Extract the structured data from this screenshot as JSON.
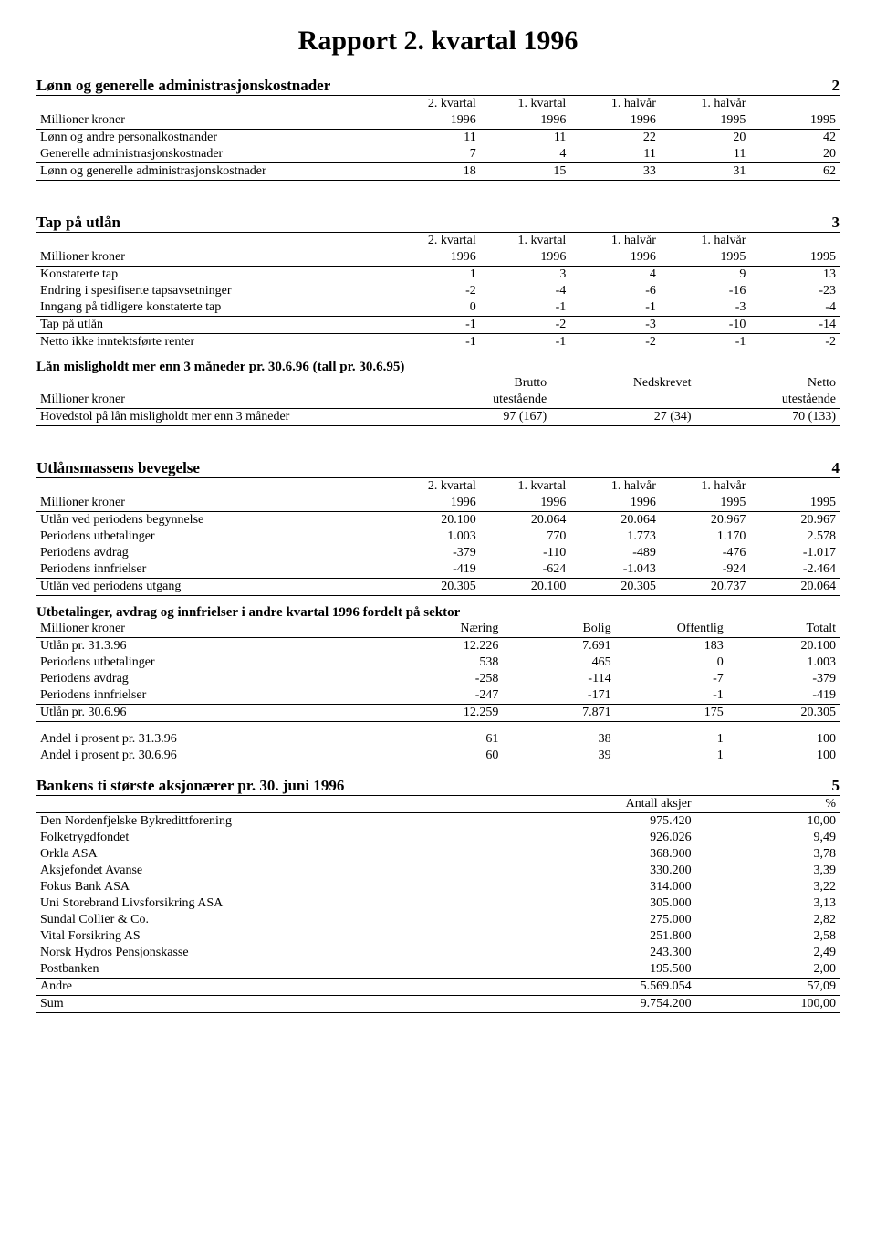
{
  "page_title": "Rapport 2. kvartal 1996",
  "section2": {
    "title": "Lønn og generelle administrasjonskostnader",
    "number": "2",
    "col_headers_top": [
      "2. kvartal",
      "1. kvartal",
      "1. halvår",
      "1. halvår",
      ""
    ],
    "row_header_label": "Millioner kroner",
    "col_headers_bottom": [
      "1996",
      "1996",
      "1996",
      "1995",
      "1995"
    ],
    "rows": [
      {
        "label": "Lønn og andre personalkostnander",
        "v": [
          "11",
          "11",
          "22",
          "20",
          "42"
        ]
      },
      {
        "label": "Generelle administrasjonskostnader",
        "v": [
          "7",
          "4",
          "11",
          "11",
          "20"
        ]
      },
      {
        "label": "Lønn og generelle administrasjonskostnader",
        "v": [
          "18",
          "15",
          "33",
          "31",
          "62"
        ]
      }
    ]
  },
  "section3": {
    "title": "Tap på utlån",
    "number": "3",
    "col_headers_top": [
      "2. kvartal",
      "1. kvartal",
      "1. halvår",
      "1. halvår",
      ""
    ],
    "row_header_label": "Millioner kroner",
    "col_headers_bottom": [
      "1996",
      "1996",
      "1996",
      "1995",
      "1995"
    ],
    "rows": [
      {
        "label": "Konstaterte tap",
        "v": [
          "1",
          "3",
          "4",
          "9",
          "13"
        ]
      },
      {
        "label": "Endring i spesifiserte tapsavsetninger",
        "v": [
          "-2",
          "-4",
          "-6",
          "-16",
          "-23"
        ]
      },
      {
        "label": "Inngang på tidligere konstaterte tap",
        "v": [
          "0",
          "-1",
          "-1",
          "-3",
          "-4"
        ]
      },
      {
        "label": "Tap på utlån",
        "v": [
          "-1",
          "-2",
          "-3",
          "-10",
          "-14"
        ]
      },
      {
        "label": "Netto ikke inntektsførte renter",
        "v": [
          "-1",
          "-1",
          "-2",
          "-1",
          "-2"
        ]
      }
    ],
    "sub_title": "Lån misligholdt mer enn 3 måneder pr. 30.6.96 (tall pr. 30.6.95)",
    "sub_cols_top": [
      "Brutto",
      "Nedskrevet",
      "Netto"
    ],
    "sub_row_header": "Millioner kroner",
    "sub_cols_bottom": [
      "utestående",
      "",
      "utestående"
    ],
    "sub_row": {
      "label": "Hovedstol på lån misligholdt mer enn 3 måneder",
      "v": [
        "97 (167)",
        "27 (34)",
        "70 (133)"
      ]
    }
  },
  "section4": {
    "title": "Utlånsmassens bevegelse",
    "number": "4",
    "col_headers_top": [
      "2. kvartal",
      "1. kvartal",
      "1. halvår",
      "1. halvår",
      ""
    ],
    "row_header_label": "Millioner kroner",
    "col_headers_bottom": [
      "1996",
      "1996",
      "1996",
      "1995",
      "1995"
    ],
    "rows": [
      {
        "label": "Utlån ved periodens begynnelse",
        "v": [
          "20.100",
          "20.064",
          "20.064",
          "20.967",
          "20.967"
        ]
      },
      {
        "label": "Periodens utbetalinger",
        "v": [
          "1.003",
          "770",
          "1.773",
          "1.170",
          "2.578"
        ]
      },
      {
        "label": "Periodens avdrag",
        "v": [
          "-379",
          "-110",
          "-489",
          "-476",
          "-1.017"
        ]
      },
      {
        "label": "Periodens innfrielser",
        "v": [
          "-419",
          "-624",
          "-1.043",
          "-924",
          "-2.464"
        ]
      },
      {
        "label": "Utlån ved periodens utgang",
        "v": [
          "20.305",
          "20.100",
          "20.305",
          "20.737",
          "20.064"
        ]
      }
    ],
    "sub_title": "Utbetalinger, avdrag og innfrielser i andre kvartal 1996 fordelt på sektor",
    "sub_row_header": "Millioner kroner",
    "sub_cols": [
      "Næring",
      "Bolig",
      "Offentlig",
      "Totalt"
    ],
    "sub_rows": [
      {
        "label": "Utlån pr. 31.3.96",
        "v": [
          "12.226",
          "7.691",
          "183",
          "20.100"
        ]
      },
      {
        "label": "Periodens utbetalinger",
        "v": [
          "538",
          "465",
          "0",
          "1.003"
        ]
      },
      {
        "label": "Periodens avdrag",
        "v": [
          "-258",
          "-114",
          "-7",
          "-379"
        ]
      },
      {
        "label": "Periodens innfrielser",
        "v": [
          "-247",
          "-171",
          "-1",
          "-419"
        ]
      },
      {
        "label": "Utlån pr. 30.6.96",
        "v": [
          "12.259",
          "7.871",
          "175",
          "20.305"
        ]
      }
    ],
    "pct_rows": [
      {
        "label": "Andel i prosent pr. 31.3.96",
        "v": [
          "61",
          "38",
          "1",
          "100"
        ]
      },
      {
        "label": "Andel i prosent pr. 30.6.96",
        "v": [
          "60",
          "39",
          "1",
          "100"
        ]
      }
    ]
  },
  "section5": {
    "title": "Bankens ti største aksjonærer pr. 30. juni 1996",
    "number": "5",
    "cols": [
      "Antall aksjer",
      "%"
    ],
    "rows": [
      {
        "label": "Den Nordenfjelske Bykredittforening",
        "v": [
          "975.420",
          "10,00"
        ]
      },
      {
        "label": "Folketrygdfondet",
        "v": [
          "926.026",
          "9,49"
        ]
      },
      {
        "label": "Orkla ASA",
        "v": [
          "368.900",
          "3,78"
        ]
      },
      {
        "label": "Aksjefondet Avanse",
        "v": [
          "330.200",
          "3,39"
        ]
      },
      {
        "label": "Fokus Bank ASA",
        "v": [
          "314.000",
          "3,22"
        ]
      },
      {
        "label": "Uni Storebrand Livsforsikring ASA",
        "v": [
          "305.000",
          "3,13"
        ]
      },
      {
        "label": "Sundal Collier & Co.",
        "v": [
          "275.000",
          "2,82"
        ]
      },
      {
        "label": "Vital Forsikring AS",
        "v": [
          "251.800",
          "2,58"
        ]
      },
      {
        "label": "Norsk Hydros Pensjonskasse",
        "v": [
          "243.300",
          "2,49"
        ]
      },
      {
        "label": "Postbanken",
        "v": [
          "195.500",
          "2,00"
        ]
      },
      {
        "label": "Andre",
        "v": [
          "5.569.054",
          "57,09"
        ]
      },
      {
        "label": "Sum",
        "v": [
          "9.754.200",
          "100,00"
        ]
      }
    ]
  },
  "layout": {
    "col_widths_5": [
      "44%",
      "11.2%",
      "11.2%",
      "11.2%",
      "11.2%",
      "11.2%"
    ],
    "col_widths_3": [
      "46%",
      "18%",
      "18%",
      "18%"
    ],
    "col_widths_4": [
      "44%",
      "14%",
      "14%",
      "14%",
      "14%"
    ],
    "col_widths_2": [
      "64%",
      "18%",
      "18%"
    ]
  }
}
